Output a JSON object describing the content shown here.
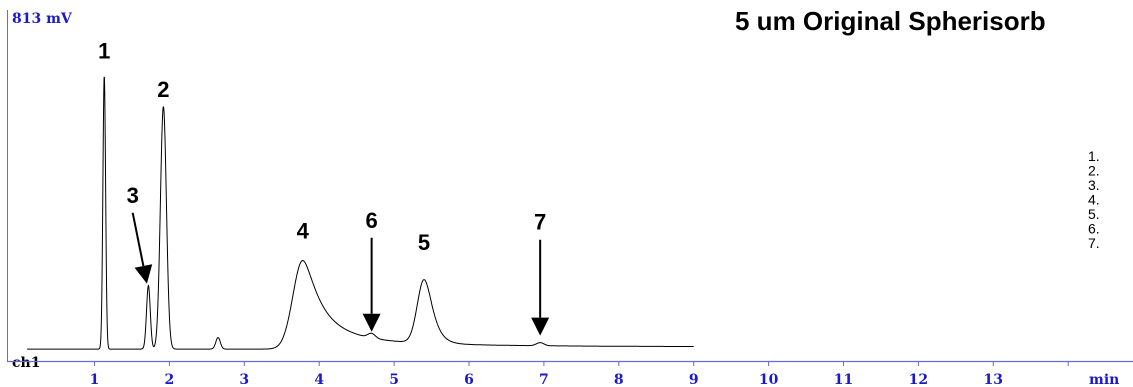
{
  "chart_data": {
    "type": "line",
    "title": "5 um Original Spherisorb",
    "ylabel": "813 mV",
    "channel_label": "ch1",
    "xlabel": "min",
    "xlim": [
      0,
      14.7
    ],
    "ylim": [
      0,
      813
    ],
    "x_ticks": [
      "1",
      "2",
      "3",
      "4",
      "5",
      "6",
      "7",
      "8",
      "9",
      "10",
      "11",
      "12",
      "13"
    ],
    "grid": false,
    "series": [
      {
        "baseline": 5,
        "x_end": 9.0,
        "peaks": [
          {
            "t": 1.13,
            "h": 710,
            "w": 0.018
          },
          {
            "t": 1.72,
            "h": 165,
            "w": 0.025
          },
          {
            "t": 1.92,
            "h": 630,
            "w": 0.04
          },
          {
            "t": 2.65,
            "h": 30,
            "w": 0.03
          },
          {
            "t": 3.78,
            "h": 230,
            "w": 0.13,
            "tail": 0.35
          },
          {
            "t": 4.7,
            "h": 12,
            "w": 0.05
          },
          {
            "t": 5.4,
            "h": 165,
            "w": 0.09,
            "tail": 0.15
          },
          {
            "t": 6.95,
            "h": 8,
            "w": 0.05
          }
        ]
      }
    ],
    "annotations": [
      {
        "label": "1",
        "x": 1.13,
        "y": 760
      },
      {
        "label": "2",
        "x": 1.92,
        "y": 660
      },
      {
        "label": "3",
        "x": 1.51,
        "y": 385,
        "arrow_to": [
          1.7,
          175
        ]
      },
      {
        "label": "4",
        "x": 3.78,
        "y": 292
      },
      {
        "label": "6",
        "x": 4.7,
        "y": 320,
        "arrow_to": [
          4.7,
          50
        ]
      },
      {
        "label": "5",
        "x": 5.4,
        "y": 262
      },
      {
        "label": "7",
        "x": 6.95,
        "y": 315,
        "arrow_to": [
          6.95,
          40
        ]
      }
    ],
    "legend_items": [
      "1.",
      "2.",
      "3.",
      "4.",
      "5.",
      "6.",
      "7."
    ]
  }
}
